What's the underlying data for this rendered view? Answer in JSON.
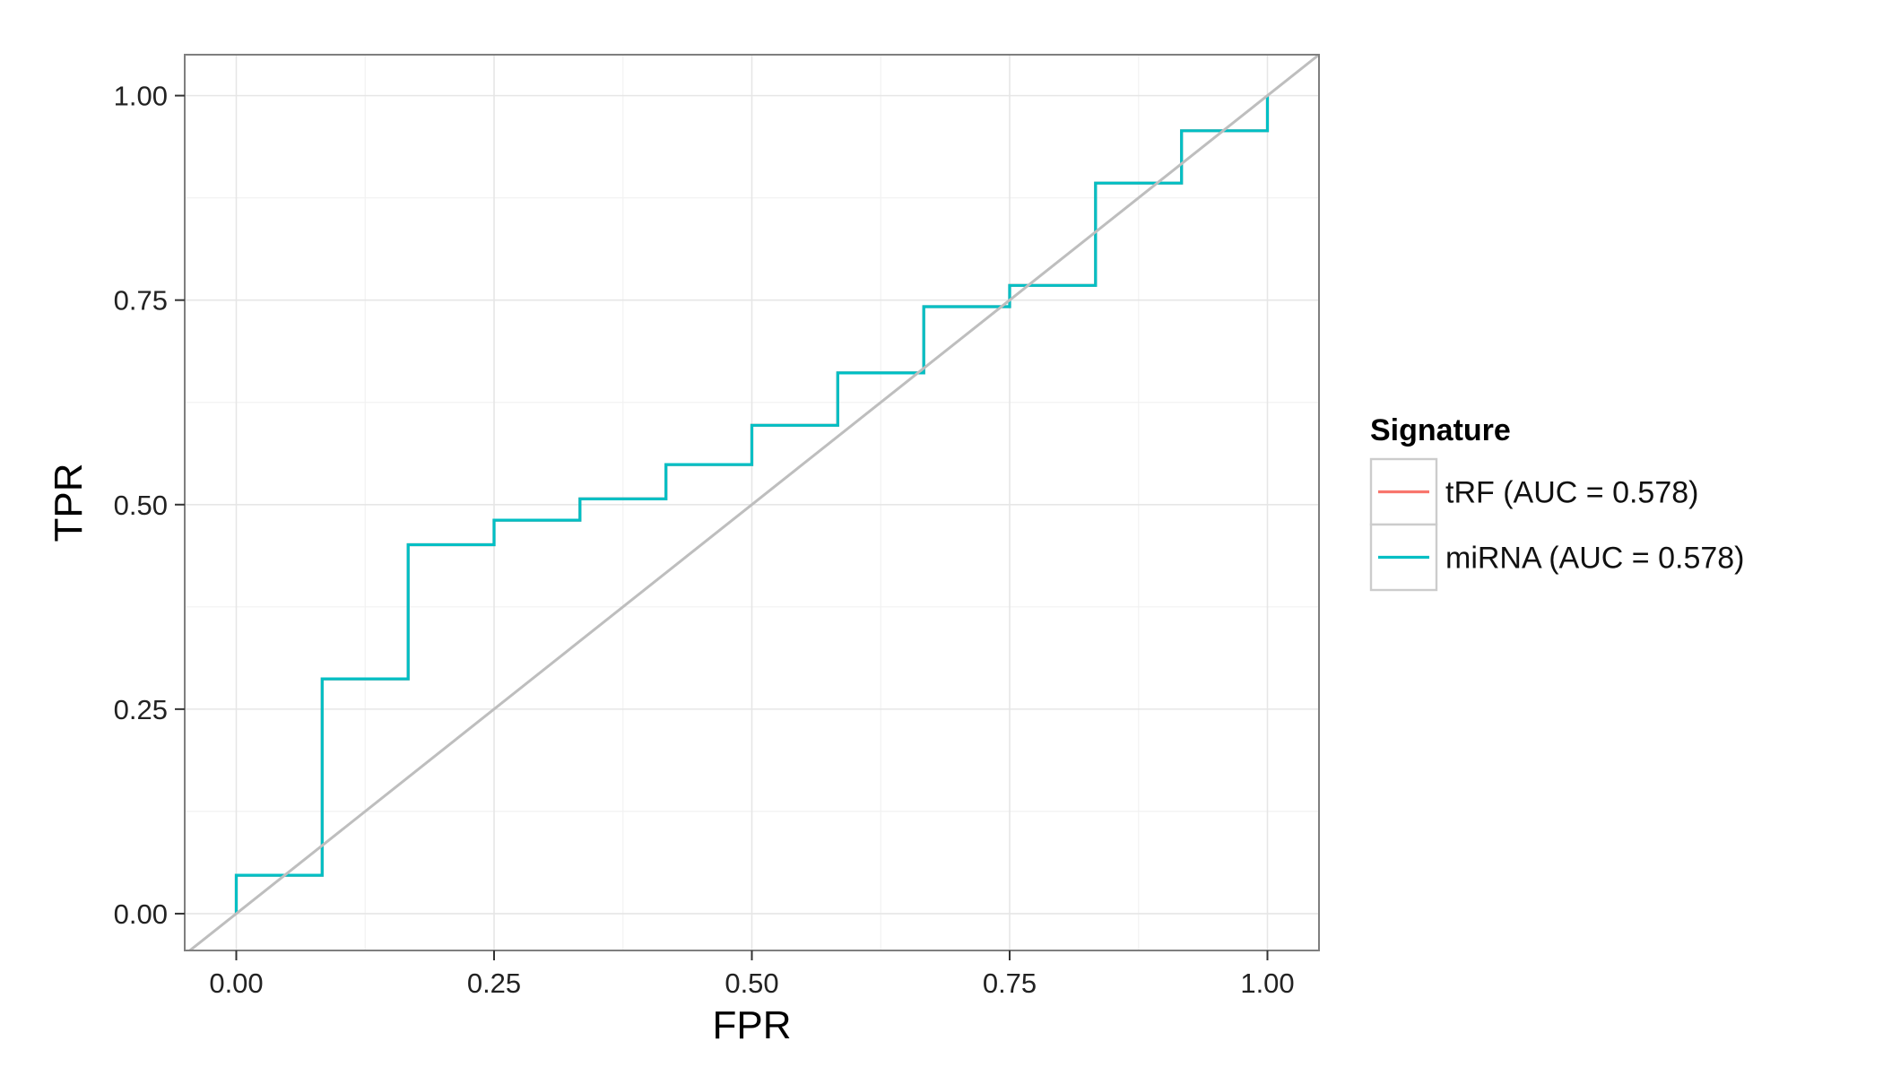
{
  "chart_data": {
    "type": "line",
    "title": "",
    "xlabel": "FPR",
    "ylabel": "TPR",
    "xlim": [
      -0.05,
      1.05
    ],
    "ylim": [
      -0.045,
      1.05
    ],
    "x_ticks": [
      0,
      0.25,
      0.5,
      0.75,
      1
    ],
    "x_tick_labels": [
      "0.00",
      "0.25",
      "0.50",
      "0.75",
      "1.00"
    ],
    "y_ticks": [
      0,
      0.25,
      0.5,
      0.75,
      1
    ],
    "y_tick_labels": [
      "0.00",
      "0.25",
      "0.50",
      "0.75",
      "1.00"
    ],
    "grid": true,
    "legend": {
      "title": "Signature",
      "placement": "right"
    },
    "diagonal": {
      "x": [
        -0.05,
        1.05
      ],
      "y": [
        -0.05,
        1.05
      ],
      "color": "#bebebe"
    },
    "series": [
      {
        "name": "tRF (AUC = 0.578)",
        "color": "#f8766d",
        "step": true,
        "x": [
          0,
          0,
          0.0833,
          0.0833,
          0.1667,
          0.1667,
          0.25,
          0.25,
          0.3333,
          0.3333,
          0.4167,
          0.4167,
          0.5,
          0.5,
          0.5833,
          0.5833,
          0.6667,
          0.6667,
          0.75,
          0.75,
          0.8333,
          0.8333,
          0.9167,
          0.9167,
          1,
          1
        ],
        "y": [
          0,
          0.047,
          0.047,
          0.287,
          0.287,
          0.451,
          0.451,
          0.481,
          0.481,
          0.507,
          0.507,
          0.549,
          0.549,
          0.597,
          0.597,
          0.661,
          0.661,
          0.742,
          0.742,
          0.768,
          0.768,
          0.893,
          0.893,
          0.957,
          0.957,
          1
        ]
      },
      {
        "name": "miRNA (AUC = 0.578)",
        "color": "#00bfc4",
        "step": true,
        "x": [
          0,
          0,
          0.0833,
          0.0833,
          0.1667,
          0.1667,
          0.25,
          0.25,
          0.3333,
          0.3333,
          0.4167,
          0.4167,
          0.5,
          0.5,
          0.5833,
          0.5833,
          0.6667,
          0.6667,
          0.75,
          0.75,
          0.8333,
          0.8333,
          0.9167,
          0.9167,
          1,
          1
        ],
        "y": [
          0,
          0.047,
          0.047,
          0.287,
          0.287,
          0.451,
          0.451,
          0.481,
          0.481,
          0.507,
          0.507,
          0.549,
          0.549,
          0.597,
          0.597,
          0.661,
          0.661,
          0.742,
          0.742,
          0.768,
          0.768,
          0.893,
          0.893,
          0.957,
          0.957,
          1
        ]
      }
    ]
  }
}
